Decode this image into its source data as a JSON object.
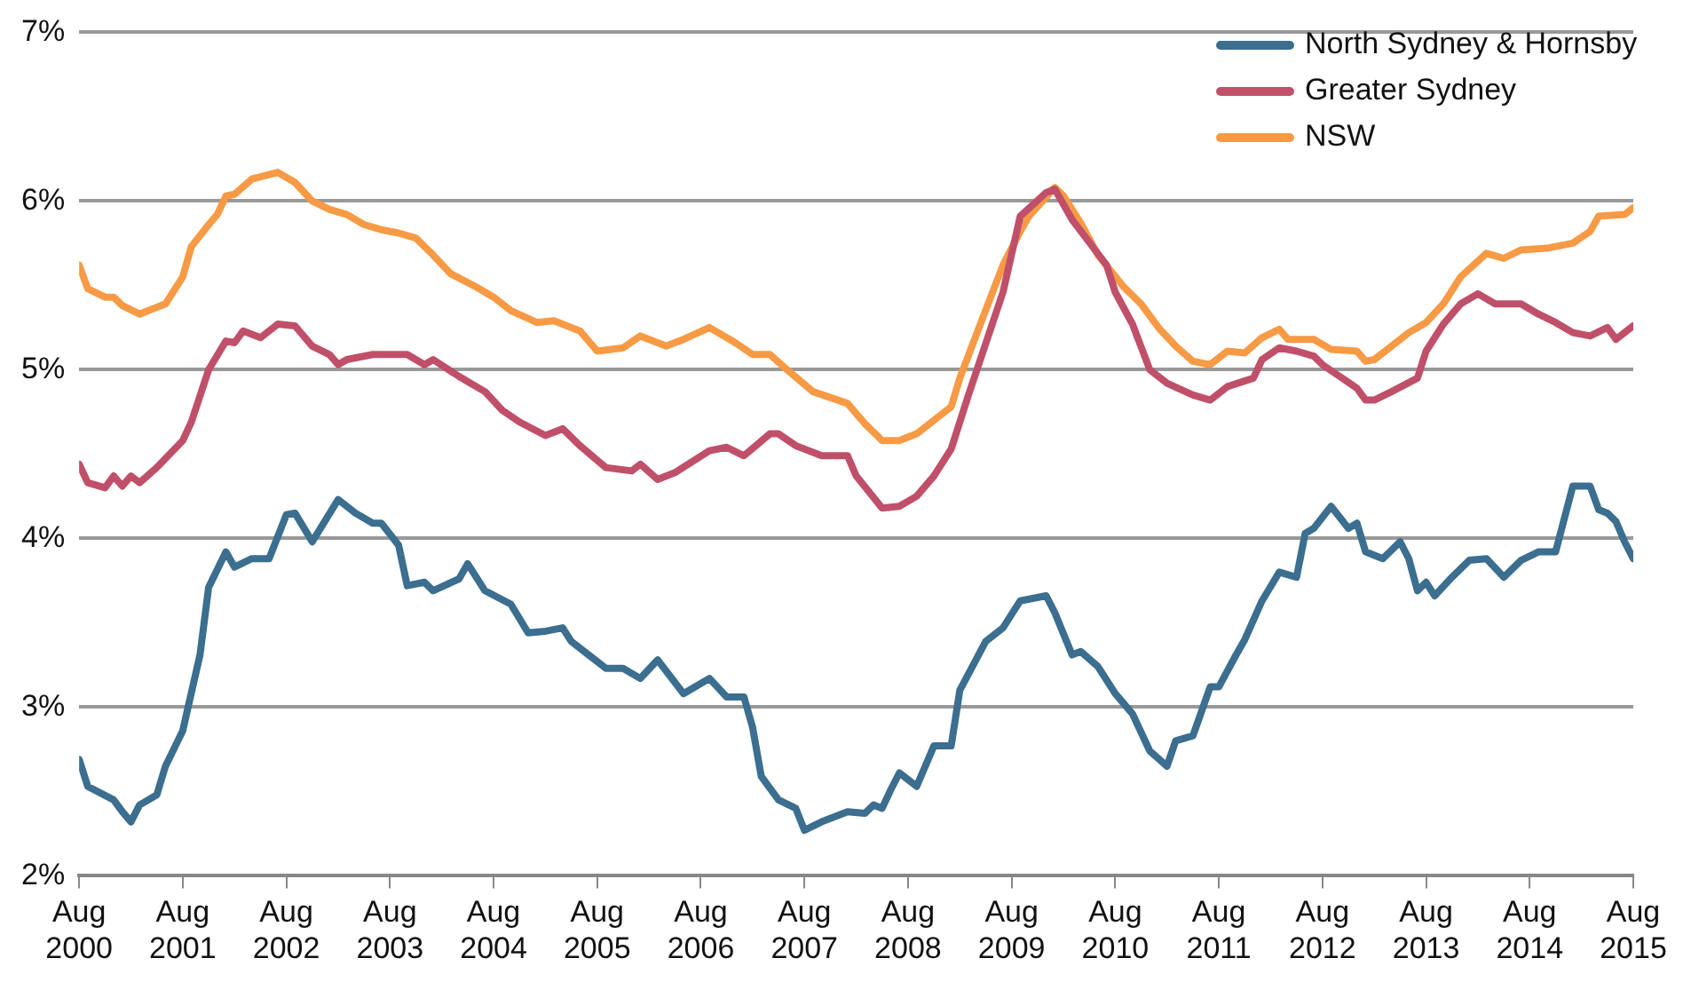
{
  "chart_data": {
    "type": "line",
    "xlim": [
      "2000-08",
      "2015-08"
    ],
    "xticks": [
      {
        "value": "2000-08",
        "label": "Aug 2000"
      },
      {
        "value": "2001-08",
        "label": "Aug 2001"
      },
      {
        "value": "2002-08",
        "label": "Aug 2002"
      },
      {
        "value": "2003-08",
        "label": "Aug 2003"
      },
      {
        "value": "2004-08",
        "label": "Aug 2004"
      },
      {
        "value": "2005-08",
        "label": "Aug 2005"
      },
      {
        "value": "2006-08",
        "label": "Aug 2006"
      },
      {
        "value": "2007-08",
        "label": "Aug 2007"
      },
      {
        "value": "2008-08",
        "label": "Aug 2008"
      },
      {
        "value": "2009-08",
        "label": "Aug 2009"
      },
      {
        "value": "2010-08",
        "label": "Aug 2010"
      },
      {
        "value": "2011-08",
        "label": "Aug 2011"
      },
      {
        "value": "2012-08",
        "label": "Aug 2012"
      },
      {
        "value": "2013-08",
        "label": "Aug 2013"
      },
      {
        "value": "2014-08",
        "label": "Aug 2014"
      },
      {
        "value": "2015-08",
        "label": "Aug 2015"
      }
    ],
    "ylim": [
      2,
      7
    ],
    "yticks": [
      {
        "value": 2,
        "label": "2%"
      },
      {
        "value": 3,
        "label": "3%"
      },
      {
        "value": 4,
        "label": "4%"
      },
      {
        "value": 5,
        "label": "5%"
      },
      {
        "value": 6,
        "label": "6%"
      },
      {
        "value": 7,
        "label": "7%"
      }
    ],
    "grid": "y",
    "legend": "top right",
    "line_style": "solid",
    "series": [
      {
        "name": "North Sydney & Hornsby",
        "color": "#3b6e8f",
        "x": [
          "2000-08",
          "2000-09",
          "2000-12",
          "2001-01",
          "2001-02",
          "2001-03",
          "2001-05",
          "2001-06",
          "2001-08",
          "2001-10",
          "2001-11",
          "2002-01",
          "2002-02",
          "2002-04",
          "2002-06",
          "2002-08",
          "2002-09",
          "2002-11",
          "2003-02",
          "2003-04",
          "2003-06",
          "2003-07",
          "2003-09",
          "2003-10",
          "2003-12",
          "2004-01",
          "2004-04",
          "2004-05",
          "2004-07",
          "2004-10",
          "2004-12",
          "2005-02",
          "2005-04",
          "2005-05",
          "2005-07",
          "2005-09",
          "2005-11",
          "2006-01",
          "2006-03",
          "2006-06",
          "2006-09",
          "2006-11",
          "2007-01",
          "2007-02",
          "2007-03",
          "2007-05",
          "2007-07",
          "2007-08",
          "2007-10",
          "2008-01",
          "2008-03",
          "2008-04",
          "2008-05",
          "2008-06",
          "2008-07",
          "2008-09",
          "2008-11",
          "2009-01",
          "2009-02",
          "2009-05",
          "2009-07",
          "2009-09",
          "2009-12",
          "2010-01",
          "2010-03",
          "2010-04",
          "2010-06",
          "2010-08",
          "2010-10",
          "2010-12",
          "2011-02",
          "2011-03",
          "2011-05",
          "2011-07",
          "2011-08",
          "2011-10",
          "2011-11",
          "2012-01",
          "2012-03",
          "2012-05",
          "2012-06",
          "2012-07",
          "2012-09",
          "2012-11",
          "2012-12",
          "2013-01",
          "2013-03",
          "2013-05",
          "2013-06",
          "2013-07",
          "2013-08",
          "2013-09",
          "2013-11",
          "2014-01",
          "2014-03",
          "2014-05",
          "2014-07",
          "2014-09",
          "2014-11",
          "2015-01",
          "2015-03",
          "2015-04",
          "2015-05",
          "2015-06",
          "2015-07",
          "2015-08"
        ],
        "values": [
          2.69,
          2.53,
          2.45,
          2.38,
          2.32,
          2.42,
          2.48,
          2.65,
          2.86,
          3.31,
          3.71,
          3.92,
          3.83,
          3.88,
          3.88,
          4.14,
          4.15,
          3.98,
          4.23,
          4.15,
          4.09,
          4.09,
          3.96,
          3.72,
          3.74,
          3.69,
          3.76,
          3.85,
          3.69,
          3.61,
          3.44,
          3.45,
          3.47,
          3.39,
          3.31,
          3.23,
          3.23,
          3.17,
          3.28,
          3.08,
          3.17,
          3.06,
          3.06,
          2.88,
          2.59,
          2.45,
          2.4,
          2.27,
          2.32,
          2.38,
          2.37,
          2.42,
          2.4,
          2.51,
          2.61,
          2.53,
          2.77,
          2.77,
          3.1,
          3.39,
          3.47,
          3.63,
          3.66,
          3.56,
          3.31,
          3.33,
          3.24,
          3.08,
          2.96,
          2.74,
          2.65,
          2.8,
          2.83,
          3.12,
          3.12,
          3.31,
          3.4,
          3.63,
          3.8,
          3.77,
          4.03,
          4.06,
          4.19,
          4.06,
          4.09,
          3.92,
          3.88,
          3.98,
          3.88,
          3.69,
          3.74,
          3.66,
          3.77,
          3.87,
          3.88,
          3.77,
          3.87,
          3.92,
          3.92,
          4.31,
          4.31,
          4.17,
          4.15,
          4.1,
          3.98,
          3.88
        ]
      },
      {
        "name": "Greater Sydney",
        "color": "#c0506a",
        "x": [
          "2000-08",
          "2000-09",
          "2000-11",
          "2000-12",
          "2001-01",
          "2001-02",
          "2001-03",
          "2001-05",
          "2001-08",
          "2001-09",
          "2001-11",
          "2002-01",
          "2002-02",
          "2002-03",
          "2002-05",
          "2002-07",
          "2002-09",
          "2002-11",
          "2003-01",
          "2003-02",
          "2003-03",
          "2003-06",
          "2003-08",
          "2003-10",
          "2003-12",
          "2004-01",
          "2004-04",
          "2004-07",
          "2004-09",
          "2004-11",
          "2005-02",
          "2005-04",
          "2005-06",
          "2005-09",
          "2005-12",
          "2006-01",
          "2006-03",
          "2006-05",
          "2006-09",
          "2006-11",
          "2007-01",
          "2007-04",
          "2007-05",
          "2007-07",
          "2007-10",
          "2008-01",
          "2008-02",
          "2008-05",
          "2008-07",
          "2008-09",
          "2008-11",
          "2009-01",
          "2009-03",
          "2009-07",
          "2009-09",
          "2009-12",
          "2010-01",
          "2010-03",
          "2010-07",
          "2010-08",
          "2010-10",
          "2010-12",
          "2011-02",
          "2011-05",
          "2011-07",
          "2011-09",
          "2011-12",
          "2012-01",
          "2012-03",
          "2012-05",
          "2012-07",
          "2012-08",
          "2012-10",
          "2012-12",
          "2013-01",
          "2013-02",
          "2013-04",
          "2013-07",
          "2013-08",
          "2013-10",
          "2013-12",
          "2014-02",
          "2014-04",
          "2014-07",
          "2014-09",
          "2014-11",
          "2015-01",
          "2015-03",
          "2015-05",
          "2015-06",
          "2015-08"
        ],
        "values": [
          4.44,
          4.33,
          4.3,
          4.37,
          4.31,
          4.37,
          4.33,
          4.42,
          4.58,
          4.69,
          5.0,
          5.17,
          5.16,
          5.23,
          5.19,
          5.27,
          5.26,
          5.14,
          5.09,
          5.03,
          5.06,
          5.09,
          5.09,
          5.09,
          5.03,
          5.06,
          4.96,
          4.87,
          4.76,
          4.69,
          4.61,
          4.65,
          4.55,
          4.42,
          4.4,
          4.44,
          4.35,
          4.39,
          4.52,
          4.54,
          4.49,
          4.62,
          4.62,
          4.55,
          4.49,
          4.49,
          4.37,
          4.18,
          4.19,
          4.25,
          4.37,
          4.53,
          4.85,
          5.46,
          5.91,
          6.05,
          6.07,
          5.89,
          5.62,
          5.46,
          5.27,
          5.0,
          4.92,
          4.85,
          4.82,
          4.9,
          4.95,
          5.06,
          5.13,
          5.11,
          5.08,
          5.03,
          4.96,
          4.89,
          4.82,
          4.82,
          4.87,
          4.95,
          5.11,
          5.27,
          5.39,
          5.45,
          5.39,
          5.39,
          5.33,
          5.28,
          5.22,
          5.2,
          5.25,
          5.18,
          5.26
        ]
      },
      {
        "name": "NSW",
        "color": "#f79a45",
        "x": [
          "2000-08",
          "2000-09",
          "2000-11",
          "2000-12",
          "2001-01",
          "2001-03",
          "2001-06",
          "2001-08",
          "2001-09",
          "2001-11",
          "2001-12",
          "2002-01",
          "2002-02",
          "2002-04",
          "2002-07",
          "2002-09",
          "2002-11",
          "2003-01",
          "2003-03",
          "2003-05",
          "2003-07",
          "2003-09",
          "2003-11",
          "2004-01",
          "2004-03",
          "2004-06",
          "2004-08",
          "2004-10",
          "2005-01",
          "2005-03",
          "2005-06",
          "2005-08",
          "2005-11",
          "2006-01",
          "2006-04",
          "2006-06",
          "2006-09",
          "2006-12",
          "2007-02",
          "2007-04",
          "2007-06",
          "2007-09",
          "2008-01",
          "2008-03",
          "2008-05",
          "2008-07",
          "2008-09",
          "2008-11",
          "2009-01",
          "2009-02",
          "2009-04",
          "2009-07",
          "2009-09",
          "2009-10",
          "2010-01",
          "2010-02",
          "2010-04",
          "2010-06",
          "2010-09",
          "2010-11",
          "2011-01",
          "2011-03",
          "2011-05",
          "2011-07",
          "2011-09",
          "2011-11",
          "2012-01",
          "2012-03",
          "2012-04",
          "2012-07",
          "2012-09",
          "2012-12",
          "2013-01",
          "2013-02",
          "2013-04",
          "2013-06",
          "2013-08",
          "2013-10",
          "2013-12",
          "2014-03",
          "2014-05",
          "2014-07",
          "2014-10",
          "2015-01",
          "2015-03",
          "2015-04",
          "2015-07",
          "2015-08"
        ],
        "values": [
          5.62,
          5.48,
          5.43,
          5.43,
          5.38,
          5.33,
          5.39,
          5.55,
          5.73,
          5.86,
          5.92,
          6.03,
          6.04,
          6.13,
          6.17,
          6.11,
          6.0,
          5.95,
          5.92,
          5.86,
          5.83,
          5.81,
          5.78,
          5.68,
          5.57,
          5.49,
          5.43,
          5.35,
          5.28,
          5.29,
          5.23,
          5.11,
          5.13,
          5.2,
          5.14,
          5.18,
          5.25,
          5.16,
          5.09,
          5.09,
          5.0,
          4.87,
          4.8,
          4.68,
          4.58,
          4.58,
          4.62,
          4.7,
          4.78,
          4.95,
          5.22,
          5.62,
          5.82,
          5.91,
          6.08,
          6.03,
          5.87,
          5.68,
          5.49,
          5.39,
          5.25,
          5.14,
          5.05,
          5.03,
          5.11,
          5.1,
          5.19,
          5.24,
          5.18,
          5.18,
          5.12,
          5.11,
          5.05,
          5.06,
          5.14,
          5.22,
          5.28,
          5.39,
          5.55,
          5.69,
          5.66,
          5.71,
          5.72,
          5.75,
          5.82,
          5.91,
          5.92,
          5.96
        ]
      }
    ]
  }
}
